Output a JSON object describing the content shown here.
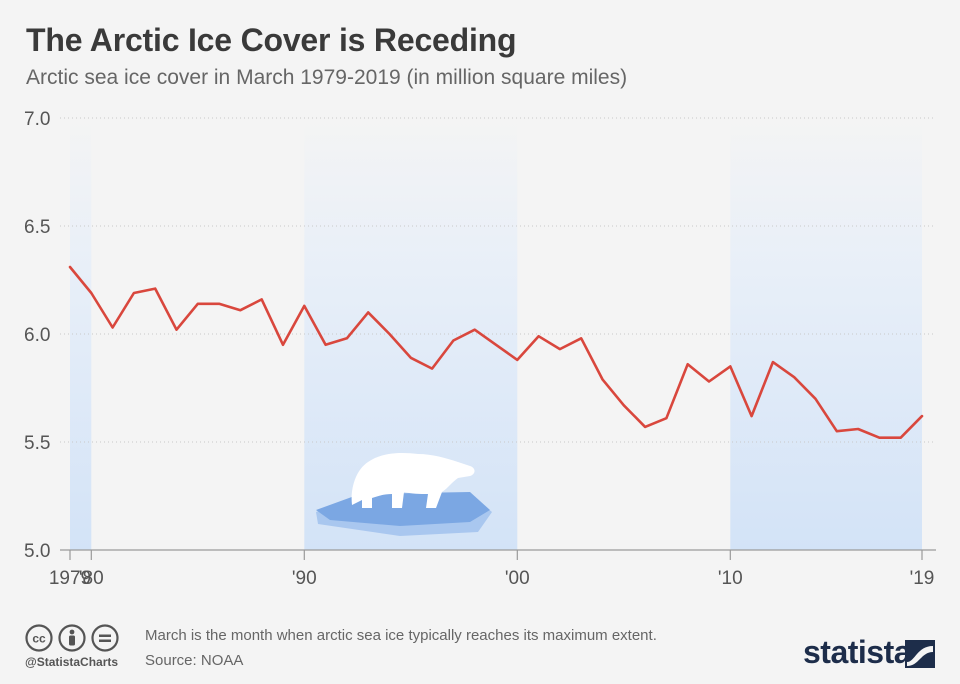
{
  "title": "The Arctic Ice Cover is Receding",
  "subtitle": "Arctic sea ice cover in March 1979-2019 (in million square miles)",
  "footer": {
    "note": "March is the month when arctic sea ice typically reaches its maximum extent.",
    "source": "Source: NOAA",
    "handle": "@StatistaCharts",
    "brand": "statista"
  },
  "colors": {
    "line": "#d9473d",
    "band": "#d6e6f8",
    "ice_top": "#7ba7e3",
    "ice_side": "#a9c7ef"
  },
  "icons": [
    "cc-icon",
    "person-icon",
    "equals-icon",
    "polar-bear-icon",
    "statista-logo-icon"
  ],
  "chart_data": {
    "type": "line",
    "title": "The Arctic Ice Cover is Receding",
    "subtitle": "Arctic sea ice cover in March 1979-2019 (in million square miles)",
    "xlabel": "",
    "ylabel": "",
    "ylim": [
      5.0,
      7.0
    ],
    "xlim": [
      1979,
      2019
    ],
    "yticks": [
      "5.0",
      "5.5",
      "6.0",
      "6.5",
      "7.0"
    ],
    "xticks": [
      {
        "x": 1979,
        "label": "1979"
      },
      {
        "x": 1980,
        "label": "'80"
      },
      {
        "x": 1990,
        "label": "'90"
      },
      {
        "x": 2000,
        "label": "'00"
      },
      {
        "x": 2010,
        "label": "'10"
      },
      {
        "x": 2019,
        "label": "'19"
      }
    ],
    "grid": true,
    "bands": [
      [
        1979,
        1980
      ],
      [
        1990,
        2000
      ],
      [
        2010,
        2019
      ]
    ],
    "x": [
      1979,
      1980,
      1981,
      1982,
      1983,
      1984,
      1985,
      1986,
      1987,
      1988,
      1989,
      1990,
      1991,
      1992,
      1993,
      1994,
      1995,
      1996,
      1997,
      1998,
      1999,
      2000,
      2001,
      2002,
      2003,
      2004,
      2005,
      2006,
      2007,
      2008,
      2009,
      2010,
      2011,
      2012,
      2013,
      2014,
      2015,
      2016,
      2017,
      2018,
      2019
    ],
    "values": [
      6.31,
      6.19,
      6.03,
      6.19,
      6.21,
      6.02,
      6.14,
      6.14,
      6.11,
      6.16,
      5.95,
      6.13,
      5.95,
      5.98,
      6.1,
      6.0,
      5.89,
      5.84,
      5.97,
      6.02,
      5.95,
      5.88,
      5.99,
      5.93,
      5.98,
      5.79,
      5.67,
      5.57,
      5.61,
      5.86,
      5.78,
      5.85,
      5.62,
      5.87,
      5.8,
      5.7,
      5.55,
      5.56,
      5.52,
      5.52,
      5.62
    ]
  }
}
